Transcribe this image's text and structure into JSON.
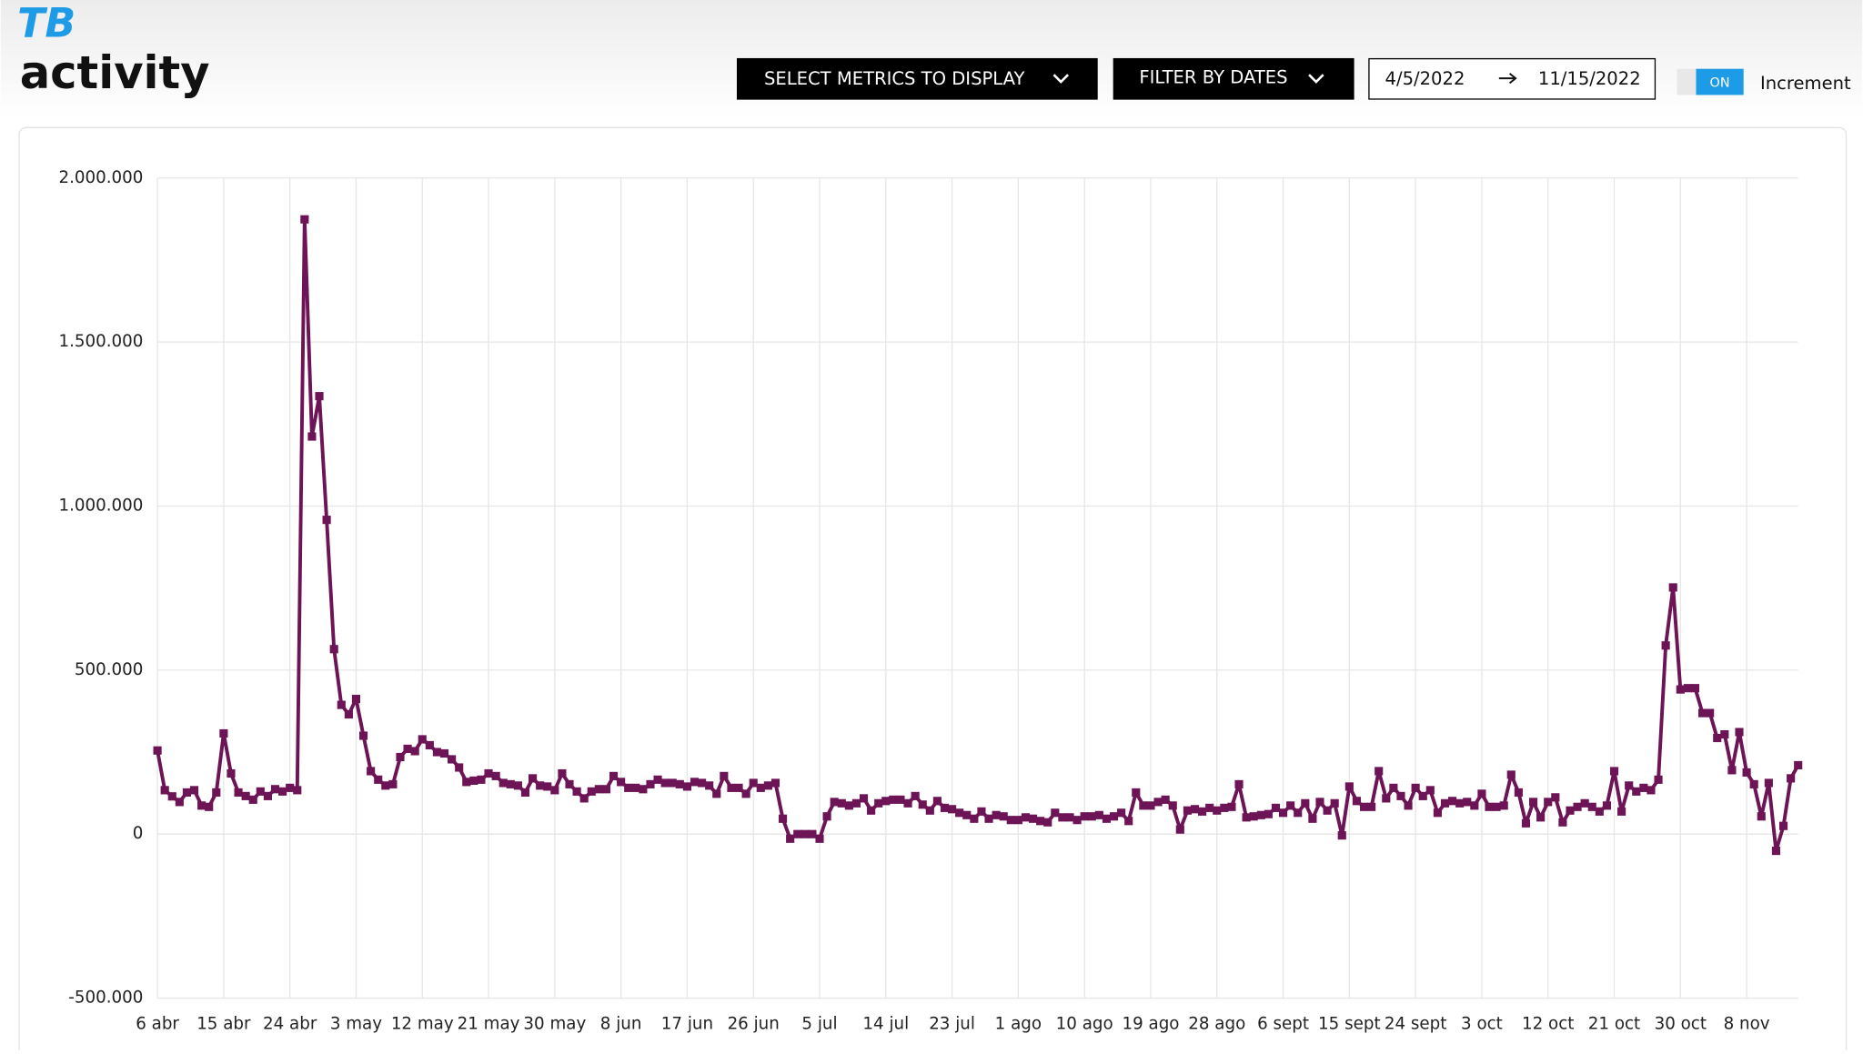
{
  "header": {
    "logo": "TB",
    "title": "activity",
    "metrics_button": "SELECT METRICS TO DISPLAY",
    "dates_button": "FILTER BY DATES",
    "date_start": "4/5/2022",
    "date_end": "11/15/2022",
    "toggle": "ON",
    "toggle_label": "Increment"
  },
  "chart_data": {
    "type": "line",
    "color": "#6d1456",
    "grid": true,
    "ylim": [
      -500000,
      2000000
    ],
    "yticks": [
      {
        "value": -500000,
        "label": "-500.000"
      },
      0,
      {
        "value": 500000,
        "label": "500.000"
      },
      {
        "value": 1000000,
        "label": "1.000.000"
      },
      {
        "value": 1500000,
        "label": "1.500.000"
      },
      {
        "value": 2000000,
        "label": "2.000.000"
      }
    ],
    "categories": [
      "6 abr",
      null,
      null,
      null,
      null,
      null,
      null,
      null,
      null,
      "15 abr",
      null,
      null,
      null,
      null,
      null,
      null,
      null,
      null,
      "24 abr",
      null,
      null,
      null,
      null,
      null,
      null,
      null,
      null,
      "3 may",
      null,
      null,
      null,
      null,
      null,
      null,
      null,
      null,
      "12 may",
      null,
      null,
      null,
      null,
      null,
      null,
      null,
      null,
      "21 may",
      null,
      null,
      null,
      null,
      null,
      null,
      null,
      null,
      "30 may",
      null,
      null,
      null,
      null,
      null,
      null,
      null,
      null,
      "8 jun",
      null,
      null,
      null,
      null,
      null,
      null,
      null,
      null,
      "17 jun",
      null,
      null,
      null,
      null,
      null,
      null,
      null,
      null,
      "26 jun",
      null,
      null,
      null,
      null,
      null,
      null,
      null,
      null,
      "5 jul",
      null,
      null,
      null,
      null,
      null,
      null,
      null,
      null,
      "14 jul",
      null,
      null,
      null,
      null,
      null,
      null,
      null,
      null,
      "23 jul",
      null,
      null,
      null,
      null,
      null,
      null,
      null,
      null,
      "1 ago",
      null,
      null,
      null,
      null,
      null,
      null,
      null,
      null,
      "10 ago",
      null,
      null,
      null,
      null,
      null,
      null,
      null,
      null,
      "19 ago",
      null,
      null,
      null,
      null,
      null,
      null,
      null,
      null,
      "28 ago",
      null,
      null,
      null,
      null,
      null,
      null,
      null,
      null,
      "6 sept",
      null,
      null,
      null,
      null,
      null,
      null,
      null,
      null,
      "15 sept",
      null,
      null,
      null,
      null,
      null,
      null,
      null,
      null,
      "24 sept",
      null,
      null,
      null,
      null,
      null,
      null,
      null,
      null,
      "3 oct",
      null,
      null,
      null,
      null,
      null,
      null,
      null,
      null,
      "12 oct",
      null,
      null,
      null,
      null,
      null,
      null,
      null,
      null,
      "21 oct",
      null,
      null,
      null,
      null,
      null,
      null,
      null,
      null,
      "30 oct",
      null,
      null,
      null,
      null,
      null,
      null,
      null,
      null,
      "8 nov",
      null,
      null,
      null,
      null,
      null,
      null,
      null
    ],
    "values": [
      255000,
      134000,
      115000,
      98000,
      127000,
      134000,
      87000,
      83000,
      127000,
      307000,
      185000,
      127000,
      116000,
      105000,
      130000,
      116000,
      137000,
      130000,
      141000,
      134000,
      1874000,
      1212000,
      1335000,
      958000,
      564000,
      394000,
      365000,
      412000,
      300000,
      192000,
      166000,
      148000,
      152000,
      235000,
      260000,
      253000,
      289000,
      271000,
      250000,
      246000,
      228000,
      203000,
      159000,
      163000,
      166000,
      185000,
      177000,
      156000,
      152000,
      148000,
      127000,
      170000,
      148000,
      145000,
      134000,
      185000,
      152000,
      130000,
      109000,
      130000,
      137000,
      137000,
      177000,
      159000,
      141000,
      141000,
      137000,
      152000,
      166000,
      156000,
      156000,
      152000,
      145000,
      159000,
      156000,
      148000,
      123000,
      177000,
      141000,
      141000,
      123000,
      156000,
      141000,
      148000,
      156000,
      47000,
      -14000,
      0,
      0,
      0,
      -14000,
      54000,
      98000,
      94000,
      87000,
      94000,
      109000,
      72000,
      94000,
      101000,
      105000,
      105000,
      94000,
      116000,
      90000,
      72000,
      101000,
      80000,
      76000,
      65000,
      58000,
      47000,
      69000,
      47000,
      58000,
      54000,
      43000,
      43000,
      51000,
      47000,
      40000,
      36000,
      65000,
      51000,
      51000,
      43000,
      54000,
      54000,
      58000,
      47000,
      54000,
      65000,
      40000,
      127000,
      87000,
      87000,
      98000,
      105000,
      87000,
      14000,
      72000,
      76000,
      69000,
      80000,
      72000,
      80000,
      83000,
      152000,
      51000,
      54000,
      58000,
      61000,
      80000,
      65000,
      87000,
      65000,
      94000,
      47000,
      98000,
      72000,
      94000,
      -4000,
      145000,
      101000,
      83000,
      83000,
      192000,
      109000,
      141000,
      116000,
      87000,
      141000,
      116000,
      134000,
      65000,
      94000,
      101000,
      94000,
      98000,
      87000,
      123000,
      83000,
      83000,
      87000,
      181000,
      127000,
      33000,
      98000,
      51000,
      98000,
      112000,
      36000,
      72000,
      83000,
      94000,
      83000,
      69000,
      87000,
      192000,
      69000,
      148000,
      130000,
      141000,
      134000,
      166000,
      575000,
      752000,
      441000,
      445000,
      445000,
      369000,
      369000,
      293000,
      304000,
      195000,
      311000,
      188000,
      152000,
      54000,
      156000,
      -51000,
      25000,
      170000,
      210000
    ]
  }
}
